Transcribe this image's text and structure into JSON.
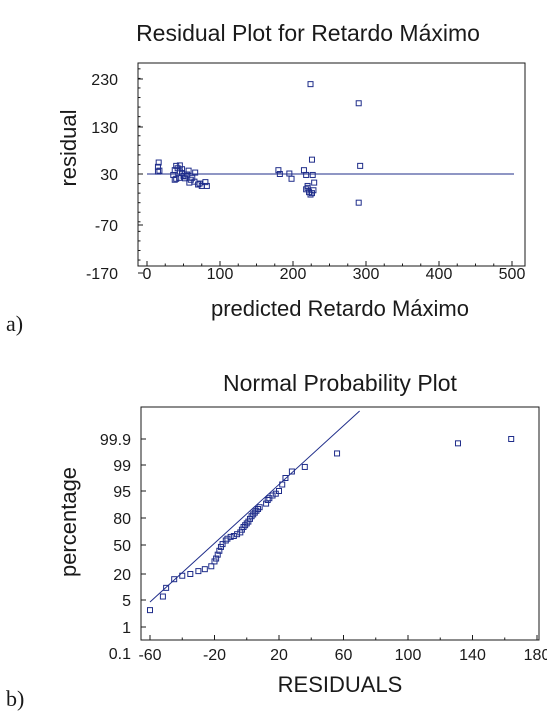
{
  "chart_data": [
    {
      "type": "scatter",
      "panel_label": "a)",
      "title": "Residual Plot for Retardo Máximo",
      "xlabel": "predicted Retardo Máximo",
      "ylabel": "residual",
      "xlim": [
        0,
        500
      ],
      "ylim": [
        -170,
        280
      ],
      "xticks": [
        0,
        100,
        200,
        300,
        400,
        500
      ],
      "yticks": [
        -170,
        -70,
        30,
        130,
        230
      ],
      "reference_line_y": 30,
      "color": "#1f2d8a",
      "points": [
        [
          15,
          45
        ],
        [
          16,
          54
        ],
        [
          15,
          35
        ],
        [
          17,
          37
        ],
        [
          38,
          38
        ],
        [
          40,
          47
        ],
        [
          42,
          42
        ],
        [
          45,
          35
        ],
        [
          45,
          48
        ],
        [
          48,
          32
        ],
        [
          50,
          26
        ],
        [
          52,
          21
        ],
        [
          40,
          20
        ],
        [
          44,
          22
        ],
        [
          48,
          40
        ],
        [
          55,
          29
        ],
        [
          57,
          37
        ],
        [
          58,
          12
        ],
        [
          60,
          18
        ],
        [
          62,
          22
        ],
        [
          66,
          33
        ],
        [
          70,
          8
        ],
        [
          72,
          10
        ],
        [
          75,
          5
        ],
        [
          80,
          13
        ],
        [
          82,
          5
        ],
        [
          36,
          28
        ],
        [
          38,
          18
        ],
        [
          53,
          25
        ],
        [
          65,
          14
        ],
        [
          180,
          38
        ],
        [
          182,
          30
        ],
        [
          195,
          31
        ],
        [
          198,
          20
        ],
        [
          215,
          38
        ],
        [
          218,
          28
        ],
        [
          220,
          1
        ],
        [
          222,
          -8
        ],
        [
          224,
          -13
        ],
        [
          226,
          -10
        ],
        [
          228,
          -4
        ],
        [
          224,
          218
        ],
        [
          226,
          60
        ],
        [
          218,
          -2
        ],
        [
          220,
          5
        ],
        [
          227,
          28
        ],
        [
          229,
          12
        ],
        [
          290,
          178
        ],
        [
          292,
          47
        ],
        [
          290,
          -30
        ]
      ]
    },
    {
      "type": "scatter",
      "panel_label": "b)",
      "title": "Normal Probability Plot",
      "xlabel": "RESIDUALS",
      "ylabel": "percentage",
      "xlim": [
        -60,
        180
      ],
      "xticks": [
        -60,
        -20,
        20,
        60,
        100,
        140,
        180
      ],
      "yticks": [
        "0.1",
        "1",
        "5",
        "20",
        "50",
        "80",
        "95",
        "99",
        "99.9"
      ],
      "color": "#1f2d8a",
      "fit_line": [
        [
          -60,
          3
        ],
        [
          70,
          99.96
        ]
      ],
      "points": [
        [
          -60,
          3.5
        ],
        [
          -52,
          7
        ],
        [
          -50,
          12
        ],
        [
          -45,
          17
        ],
        [
          -40,
          19
        ],
        [
          -35,
          20
        ],
        [
          -30,
          23
        ],
        [
          -26,
          25
        ],
        [
          -22,
          28
        ],
        [
          -20,
          33
        ],
        [
          -19,
          36
        ],
        [
          -18,
          40
        ],
        [
          -17,
          44
        ],
        [
          -16,
          48
        ],
        [
          -15,
          51
        ],
        [
          -13,
          55
        ],
        [
          -12,
          57
        ],
        [
          -10,
          59
        ],
        [
          -8,
          60
        ],
        [
          -6,
          62
        ],
        [
          -4,
          64
        ],
        [
          -3,
          67
        ],
        [
          -2,
          70
        ],
        [
          -1,
          72
        ],
        [
          0,
          74
        ],
        [
          1,
          76
        ],
        [
          2,
          79
        ],
        [
          3,
          81
        ],
        [
          4,
          82
        ],
        [
          5,
          83
        ],
        [
          6,
          84
        ],
        [
          7,
          85
        ],
        [
          8,
          86
        ],
        [
          12,
          88
        ],
        [
          13,
          90
        ],
        [
          14,
          91
        ],
        [
          16,
          92.5
        ],
        [
          18,
          93.5
        ],
        [
          20,
          95
        ],
        [
          22,
          96
        ],
        [
          24,
          97
        ],
        [
          28,
          98
        ],
        [
          36,
          98.7
        ],
        [
          56,
          99.4
        ],
        [
          131,
          99.75
        ],
        [
          164,
          99.9
        ]
      ]
    }
  ]
}
